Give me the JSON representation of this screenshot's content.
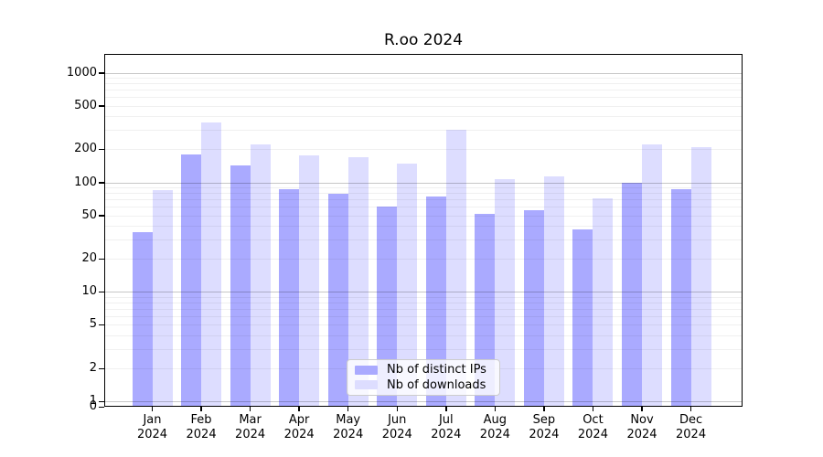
{
  "title": "R.oo 2024",
  "legend": {
    "items": [
      {
        "label": "Nb of distinct IPs"
      },
      {
        "label": "Nb of downloads"
      }
    ]
  },
  "chart_data": {
    "type": "bar",
    "title": "R.oo 2024",
    "categories": [
      "Jan 2024",
      "Feb 2024",
      "Mar 2024",
      "Apr 2024",
      "May 2024",
      "Jun 2024",
      "Jul 2024",
      "Aug 2024",
      "Sep 2024",
      "Oct 2024",
      "Nov 2024",
      "Dec 2024"
    ],
    "series": [
      {
        "name": "Nb of distinct IPs",
        "color": "#aaaaff",
        "values": [
          35,
          180,
          144,
          87,
          79,
          60,
          74,
          52,
          56,
          37,
          100,
          86
        ]
      },
      {
        "name": "Nb of downloads",
        "color": "#ddddff",
        "values": [
          85,
          350,
          224,
          176,
          171,
          148,
          302,
          108,
          114,
          71,
          221,
          210
        ]
      }
    ],
    "xlabel": "",
    "ylabel": "",
    "yscale": "log",
    "yticks": [
      1000,
      500,
      200,
      100,
      50,
      20,
      10,
      5,
      2,
      1,
      0
    ],
    "ylim": [
      0,
      1500
    ],
    "grid": true,
    "grid_major_at": [
      1000,
      100,
      10,
      1
    ],
    "grid_minor_at": [
      900,
      800,
      700,
      600,
      500,
      400,
      300,
      200,
      90,
      80,
      70,
      60,
      50,
      40,
      30,
      20,
      9,
      8,
      7,
      6,
      5,
      4,
      3,
      2
    ],
    "legend_position": "bottom-center"
  }
}
